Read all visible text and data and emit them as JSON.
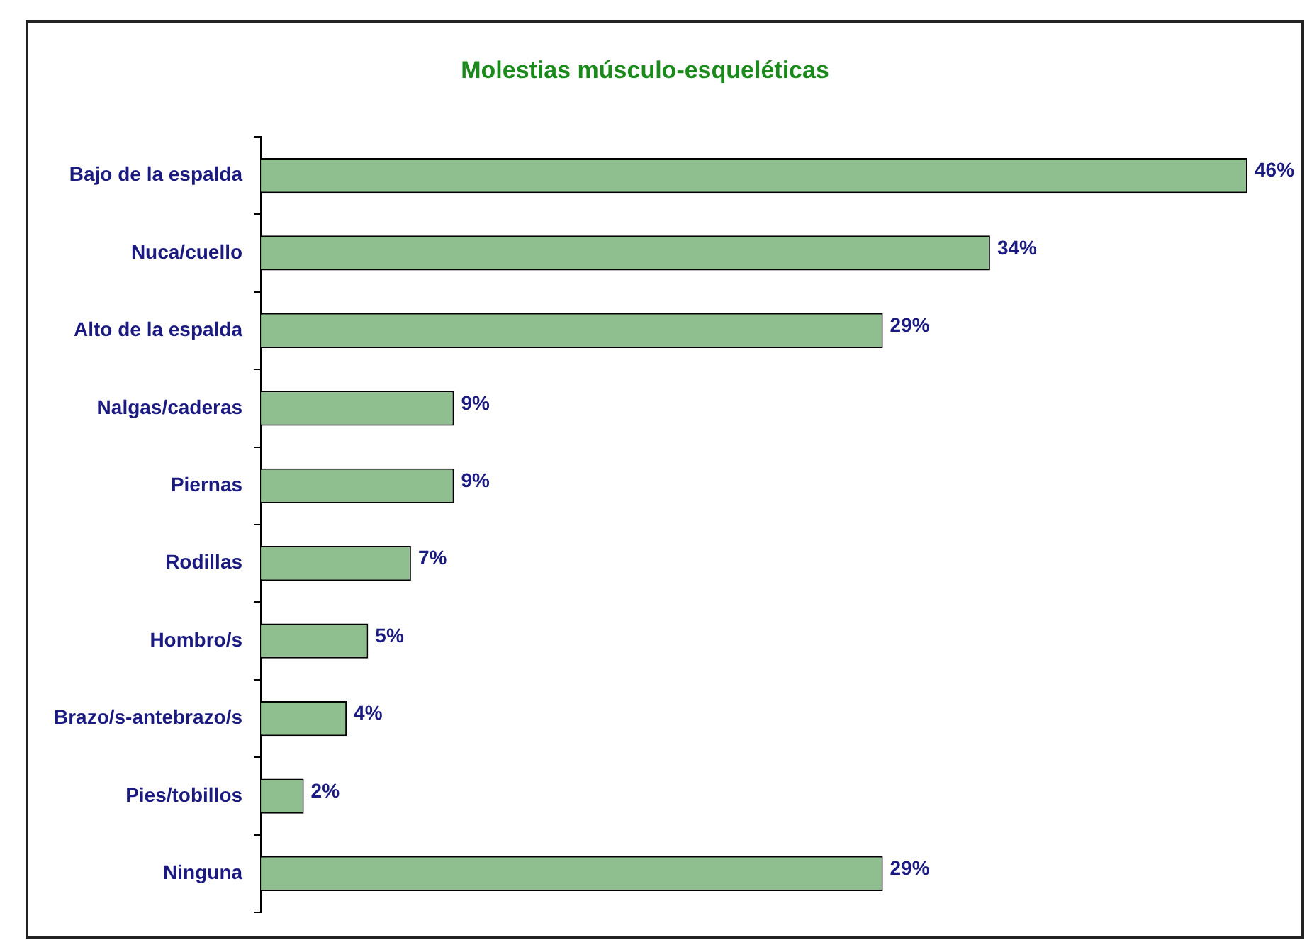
{
  "chart_data": {
    "type": "bar",
    "orientation": "horizontal",
    "title": "Molestias músculo-esqueléticas",
    "categories": [
      "Bajo de la espalda",
      "Nuca/cuello",
      "Alto de la espalda",
      "Nalgas/caderas",
      "Piernas",
      "Rodillas",
      "Hombro/s",
      "Brazo/s-antebrazo/s",
      "Pies/tobillos",
      "Ninguna"
    ],
    "values": [
      46,
      34,
      29,
      9,
      9,
      7,
      5,
      4,
      2,
      29
    ],
    "value_labels": [
      "46%",
      "34%",
      "29%",
      "9%",
      "9%",
      "7%",
      "5%",
      "4%",
      "2%",
      "29%"
    ],
    "color": "#8fbf8f",
    "grid": false,
    "legend": false
  }
}
